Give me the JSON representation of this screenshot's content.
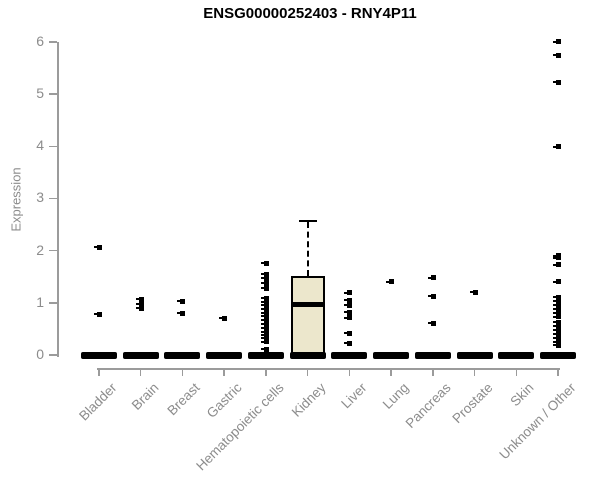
{
  "header": {
    "title": "ENSG00000252403 - RNY4P11"
  },
  "chart_data": {
    "type": "boxplot",
    "title": "ENSG00000252403 - RNY4P11",
    "xlabel": "",
    "ylabel": "Expression",
    "ylim": [
      0,
      6
    ],
    "yticks": [
      0,
      1,
      2,
      3,
      4,
      5,
      6
    ],
    "grid": false,
    "legend": "none",
    "categories": [
      "Bladder",
      "Brain",
      "Breast",
      "Gastric",
      "Hematopoietic cells",
      "Kidney",
      "Liver",
      "Lung",
      "Pancreas",
      "Prostate",
      "Skin",
      "Unknown / Other"
    ],
    "boxes": [
      {
        "category": "Bladder",
        "median": 0,
        "q1": 0,
        "q3": 0,
        "whisker_low": 0,
        "whisker_high": 0,
        "outliers": [
          2.07,
          0.78
        ]
      },
      {
        "category": "Brain",
        "median": 0,
        "q1": 0,
        "q3": 0,
        "whisker_low": 0,
        "whisker_high": 0,
        "outliers": [
          1.07,
          0.98,
          0.9
        ]
      },
      {
        "category": "Breast",
        "median": 0,
        "q1": 0,
        "q3": 0,
        "whisker_low": 0,
        "whisker_high": 0,
        "outliers": [
          1.03,
          0.8
        ]
      },
      {
        "category": "Gastric",
        "median": 0,
        "q1": 0,
        "q3": 0,
        "whisker_low": 0,
        "whisker_high": 0,
        "outliers": [
          0.7
        ]
      },
      {
        "category": "Hematopoietic cells",
        "median": 0,
        "q1": 0,
        "q3": 0,
        "whisker_low": 0,
        "whisker_high": 0,
        "outliers": [
          1.76,
          1.55,
          1.47,
          1.38,
          1.28,
          1.09,
          1.02,
          0.95,
          0.88,
          0.81,
          0.74,
          0.67,
          0.6,
          0.52,
          0.45,
          0.38,
          0.33,
          0.25,
          0.11
        ]
      },
      {
        "category": "Kidney",
        "median": 0.97,
        "q1": 0,
        "q3": 1.51,
        "whisker_low": 0,
        "whisker_high": 2.57,
        "outliers": []
      },
      {
        "category": "Liver",
        "median": 0,
        "q1": 0,
        "q3": 0,
        "whisker_low": 0,
        "whisker_high": 0,
        "outliers": [
          1.19,
          1.05,
          0.95,
          0.82,
          0.71,
          0.42,
          0.23
        ]
      },
      {
        "category": "Lung",
        "median": 0,
        "q1": 0,
        "q3": 0,
        "whisker_low": 0,
        "whisker_high": 0,
        "outliers": [
          1.4
        ]
      },
      {
        "category": "Pancreas",
        "median": 0,
        "q1": 0,
        "q3": 0,
        "whisker_low": 0,
        "whisker_high": 0,
        "outliers": [
          1.48,
          1.13,
          0.61
        ]
      },
      {
        "category": "Prostate",
        "median": 0,
        "q1": 0,
        "q3": 0,
        "whisker_low": 0,
        "whisker_high": 0,
        "outliers": [
          1.2
        ]
      },
      {
        "category": "Skin",
        "median": 0,
        "q1": 0,
        "q3": 0,
        "whisker_low": 0,
        "whisker_high": 0,
        "outliers": []
      },
      {
        "category": "Unknown / Other",
        "median": 0,
        "q1": 0,
        "q3": 0,
        "whisker_low": 0,
        "whisker_high": 0,
        "outliers": [
          6.0,
          5.75,
          5.23,
          3.99,
          1.9,
          1.86,
          1.73,
          1.4,
          1.11,
          1.03,
          0.96,
          0.88,
          0.8,
          0.73,
          0.63,
          0.56,
          0.48,
          0.4,
          0.33,
          0.25,
          0.19
        ]
      }
    ],
    "colors": {
      "box_fill": "#ECE7CC",
      "box_border": "#000000",
      "median": "#000000",
      "outlier": "#000000",
      "axis": "#9b9b9b",
      "axis_text": "#8c8c8c",
      "title_text": "#000000"
    }
  }
}
